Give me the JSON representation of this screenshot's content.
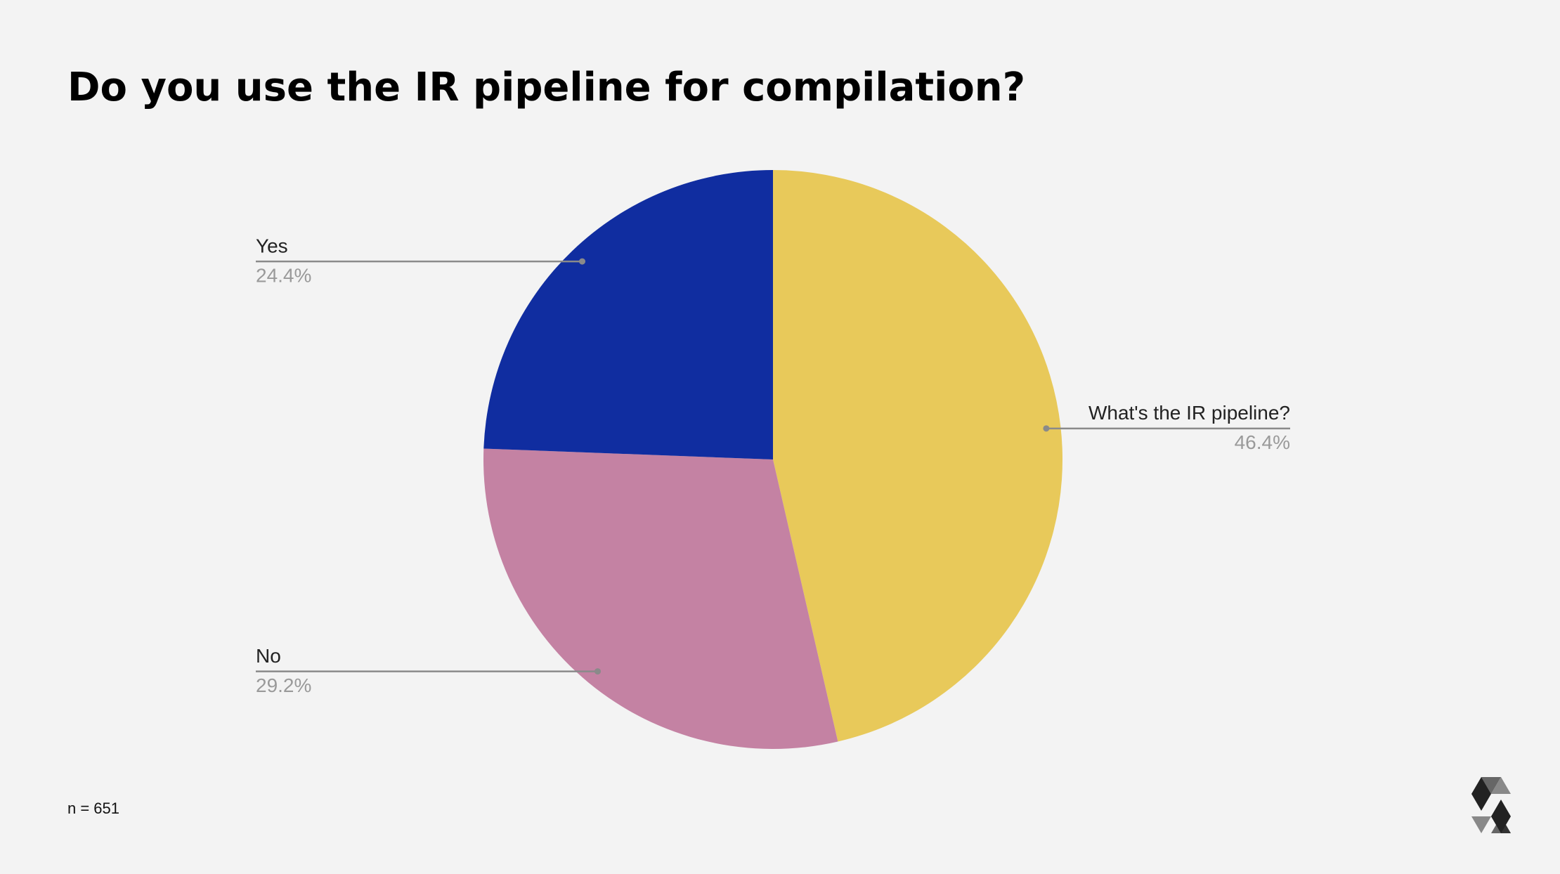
{
  "chart_data": {
    "type": "pie",
    "title": "Do you use the IR pipeline for compilation?",
    "categories": [
      "What's the IR pipeline?",
      "No",
      "Yes"
    ],
    "values": [
      46.4,
      29.2,
      24.4
    ],
    "value_labels": [
      "46.4%",
      "29.2%",
      "24.4%"
    ],
    "colors": [
      "#e8c95a",
      "#c482a3",
      "#102da0"
    ],
    "footnote": "n = 651"
  }
}
